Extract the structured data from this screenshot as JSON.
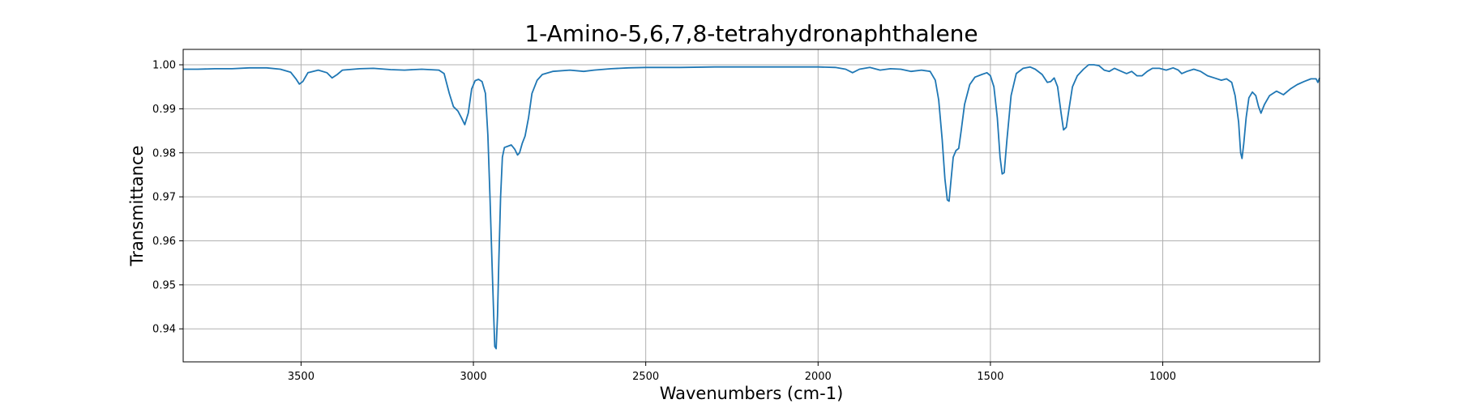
{
  "chart_data": {
    "type": "line",
    "title": "1-Amino-5,6,7,8-tetrahydronaphthalene",
    "xlabel": "Wavenumbers (cm-1)",
    "ylabel": "Transmittance",
    "xlim": [
      3842,
      545
    ],
    "ylim": [
      0.9325,
      1.0035
    ],
    "x_reversed": true,
    "grid": true,
    "line_color": "#1f77b4",
    "x_ticks": [
      3500,
      3000,
      2500,
      2000,
      1500,
      1000
    ],
    "x_tick_labels": [
      "3500",
      "3000",
      "2500",
      "2000",
      "1500",
      "1000"
    ],
    "y_ticks": [
      0.94,
      0.95,
      0.96,
      0.97,
      0.98,
      0.99,
      1.0
    ],
    "y_tick_labels": [
      "0.94",
      "0.95",
      "0.96",
      "0.97",
      "0.98",
      "0.99",
      "1.00"
    ],
    "series": [
      {
        "points": [
          [
            3842,
            0.999
          ],
          [
            3800,
            0.999
          ],
          [
            3750,
            0.9991
          ],
          [
            3700,
            0.9991
          ],
          [
            3650,
            0.9993
          ],
          [
            3600,
            0.9993
          ],
          [
            3560,
            0.999
          ],
          [
            3530,
            0.9983
          ],
          [
            3515,
            0.9968
          ],
          [
            3505,
            0.9956
          ],
          [
            3495,
            0.9962
          ],
          [
            3480,
            0.9982
          ],
          [
            3450,
            0.9988
          ],
          [
            3425,
            0.9982
          ],
          [
            3410,
            0.997
          ],
          [
            3395,
            0.9978
          ],
          [
            3380,
            0.9988
          ],
          [
            3330,
            0.9991
          ],
          [
            3290,
            0.9992
          ],
          [
            3240,
            0.9989
          ],
          [
            3200,
            0.9988
          ],
          [
            3150,
            0.999
          ],
          [
            3100,
            0.9988
          ],
          [
            3085,
            0.998
          ],
          [
            3070,
            0.9935
          ],
          [
            3058,
            0.9905
          ],
          [
            3045,
            0.9895
          ],
          [
            3035,
            0.988
          ],
          [
            3025,
            0.9864
          ],
          [
            3015,
            0.989
          ],
          [
            3005,
            0.9945
          ],
          [
            2995,
            0.9964
          ],
          [
            2985,
            0.9967
          ],
          [
            2975,
            0.9962
          ],
          [
            2965,
            0.9935
          ],
          [
            2958,
            0.984
          ],
          [
            2952,
            0.97
          ],
          [
            2946,
            0.955
          ],
          [
            2941,
            0.943
          ],
          [
            2938,
            0.936
          ],
          [
            2934,
            0.9355
          ],
          [
            2930,
            0.943
          ],
          [
            2926,
            0.956
          ],
          [
            2921,
            0.97
          ],
          [
            2916,
            0.979
          ],
          [
            2910,
            0.9812
          ],
          [
            2900,
            0.9815
          ],
          [
            2890,
            0.9818
          ],
          [
            2880,
            0.9808
          ],
          [
            2872,
            0.9795
          ],
          [
            2866,
            0.98
          ],
          [
            2858,
            0.9822
          ],
          [
            2850,
            0.9838
          ],
          [
            2840,
            0.988
          ],
          [
            2830,
            0.9935
          ],
          [
            2815,
            0.9965
          ],
          [
            2800,
            0.9978
          ],
          [
            2770,
            0.9985
          ],
          [
            2720,
            0.9988
          ],
          [
            2680,
            0.9985
          ],
          [
            2650,
            0.9988
          ],
          [
            2600,
            0.9991
          ],
          [
            2550,
            0.9993
          ],
          [
            2500,
            0.9994
          ],
          [
            2400,
            0.9994
          ],
          [
            2300,
            0.9995
          ],
          [
            2200,
            0.9995
          ],
          [
            2100,
            0.9995
          ],
          [
            2000,
            0.9995
          ],
          [
            1950,
            0.9994
          ],
          [
            1920,
            0.999
          ],
          [
            1900,
            0.9982
          ],
          [
            1880,
            0.999
          ],
          [
            1850,
            0.9994
          ],
          [
            1820,
            0.9988
          ],
          [
            1790,
            0.9991
          ],
          [
            1760,
            0.999
          ],
          [
            1730,
            0.9985
          ],
          [
            1700,
            0.9988
          ],
          [
            1675,
            0.9985
          ],
          [
            1660,
            0.9965
          ],
          [
            1650,
            0.992
          ],
          [
            1640,
            0.983
          ],
          [
            1632,
            0.974
          ],
          [
            1625,
            0.9693
          ],
          [
            1620,
            0.969
          ],
          [
            1614,
            0.974
          ],
          [
            1608,
            0.979
          ],
          [
            1600,
            0.9805
          ],
          [
            1592,
            0.981
          ],
          [
            1585,
            0.985
          ],
          [
            1575,
            0.991
          ],
          [
            1560,
            0.9955
          ],
          [
            1545,
            0.9972
          ],
          [
            1525,
            0.9978
          ],
          [
            1510,
            0.9982
          ],
          [
            1500,
            0.9975
          ],
          [
            1490,
            0.995
          ],
          [
            1480,
            0.988
          ],
          [
            1472,
            0.979
          ],
          [
            1466,
            0.9752
          ],
          [
            1460,
            0.9755
          ],
          [
            1452,
            0.983
          ],
          [
            1440,
            0.993
          ],
          [
            1425,
            0.998
          ],
          [
            1405,
            0.9992
          ],
          [
            1385,
            0.9995
          ],
          [
            1370,
            0.999
          ],
          [
            1350,
            0.9978
          ],
          [
            1335,
            0.996
          ],
          [
            1325,
            0.9962
          ],
          [
            1315,
            0.997
          ],
          [
            1305,
            0.995
          ],
          [
            1295,
            0.989
          ],
          [
            1288,
            0.9852
          ],
          [
            1280,
            0.9858
          ],
          [
            1272,
            0.99
          ],
          [
            1262,
            0.995
          ],
          [
            1248,
            0.9975
          ],
          [
            1230,
            0.999
          ],
          [
            1215,
            1.0
          ],
          [
            1200,
            1.0
          ],
          [
            1185,
            0.9998
          ],
          [
            1170,
            0.9988
          ],
          [
            1155,
            0.9985
          ],
          [
            1140,
            0.9992
          ],
          [
            1120,
            0.9985
          ],
          [
            1105,
            0.998
          ],
          [
            1090,
            0.9985
          ],
          [
            1075,
            0.9975
          ],
          [
            1060,
            0.9975
          ],
          [
            1045,
            0.9985
          ],
          [
            1030,
            0.9992
          ],
          [
            1010,
            0.9992
          ],
          [
            990,
            0.9988
          ],
          [
            970,
            0.9993
          ],
          [
            955,
            0.9988
          ],
          [
            945,
            0.998
          ],
          [
            930,
            0.9985
          ],
          [
            910,
            0.999
          ],
          [
            890,
            0.9985
          ],
          [
            870,
            0.9975
          ],
          [
            850,
            0.997
          ],
          [
            830,
            0.9965
          ],
          [
            815,
            0.9968
          ],
          [
            800,
            0.996
          ],
          [
            790,
            0.993
          ],
          [
            780,
            0.987
          ],
          [
            774,
            0.98
          ],
          [
            770,
            0.9787
          ],
          [
            765,
            0.982
          ],
          [
            758,
            0.988
          ],
          [
            750,
            0.9925
          ],
          [
            740,
            0.9938
          ],
          [
            730,
            0.993
          ],
          [
            722,
            0.9905
          ],
          [
            715,
            0.989
          ],
          [
            705,
            0.991
          ],
          [
            690,
            0.993
          ],
          [
            670,
            0.994
          ],
          [
            650,
            0.9932
          ],
          [
            630,
            0.9945
          ],
          [
            610,
            0.9955
          ],
          [
            590,
            0.9962
          ],
          [
            570,
            0.9968
          ],
          [
            555,
            0.9968
          ],
          [
            550,
            0.996
          ],
          [
            545,
            0.997
          ]
        ]
      }
    ]
  }
}
